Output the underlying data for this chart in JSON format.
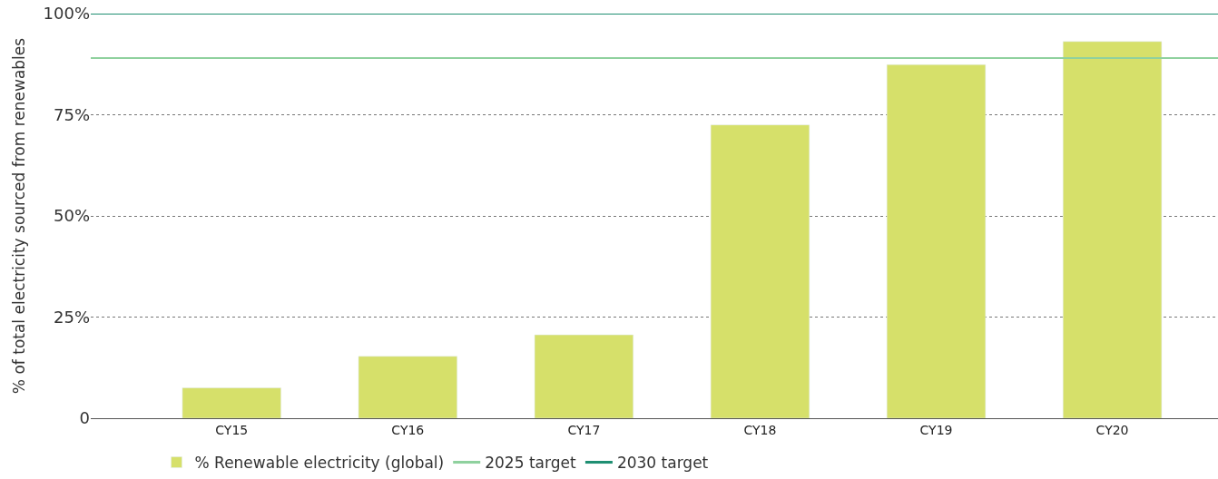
{
  "chart_data": {
    "type": "bar",
    "ylabel": "% of total electricity sourced from renewables",
    "categories": [
      "CY15",
      "CY16",
      "CY17",
      "CY18",
      "CY19",
      "CY20"
    ],
    "series": [
      {
        "name": "% Renewable electricity (global)",
        "color": "#d6e06a",
        "values": [
          7.5,
          15.3,
          20.6,
          72.5,
          87.4,
          93.1
        ]
      }
    ],
    "ylim": [
      0,
      100
    ],
    "yticks": [
      {
        "value": 0,
        "label": "0"
      },
      {
        "value": 25,
        "label": "25%"
      },
      {
        "value": 50,
        "label": "50%"
      },
      {
        "value": 75,
        "label": "75%"
      },
      {
        "value": 100,
        "label": "100%"
      }
    ],
    "ref_lines": [
      {
        "axis": "y",
        "value": 89,
        "label": "2025 target",
        "color": "#8fd19e"
      },
      {
        "axis": "y",
        "value": 100,
        "label": "2030 target",
        "color": "#1f8f72"
      }
    ],
    "grid": "y",
    "legend": "bottom"
  }
}
